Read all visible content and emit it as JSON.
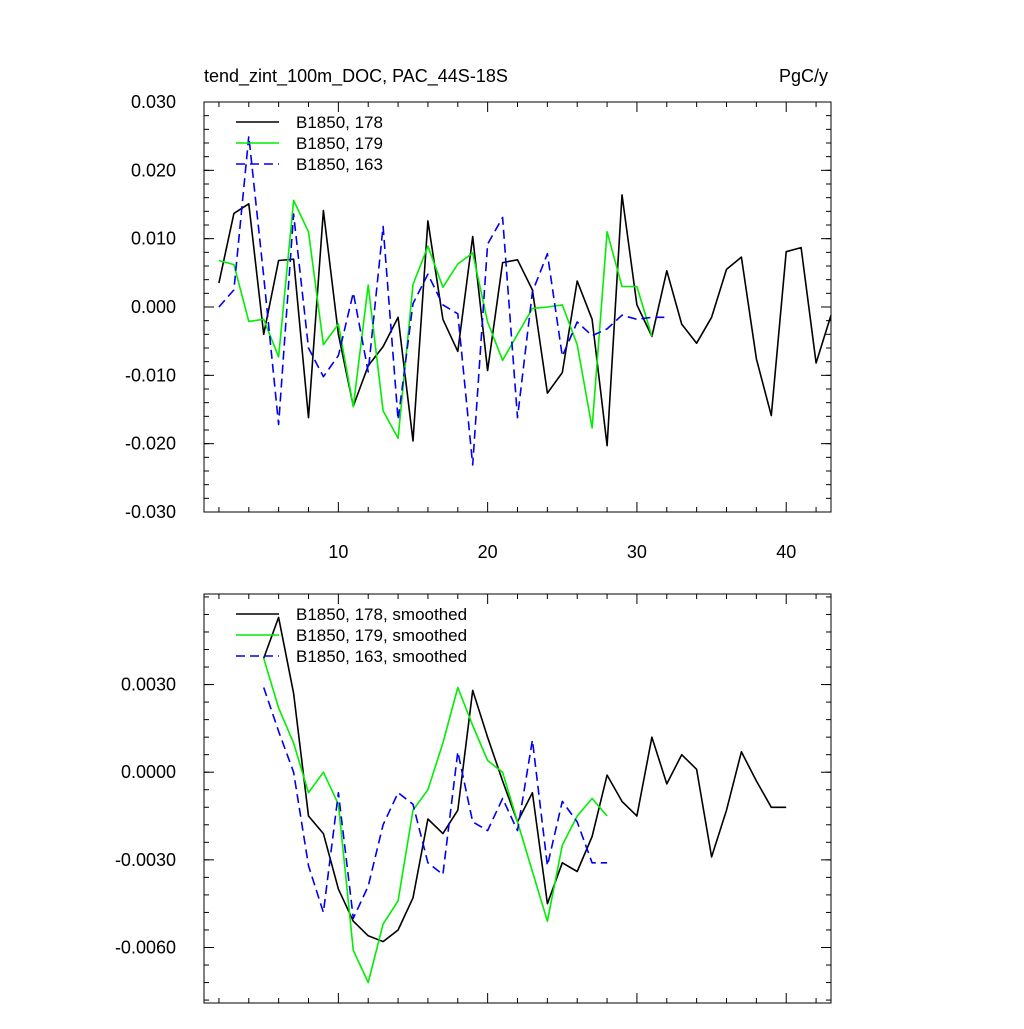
{
  "chart_data": [
    {
      "type": "line",
      "title": "tend_zint_100m_DOC, PAC_44S-18S",
      "units": "PgC/y",
      "xlim": [
        1,
        43
      ],
      "ylim": [
        -0.03,
        0.03
      ],
      "x_ticks": [
        10,
        20,
        30,
        40
      ],
      "y_ticks": [
        -0.03,
        -0.02,
        -0.01,
        0.0,
        0.01,
        0.02,
        0.03
      ],
      "y_tick_labels": [
        "-0.030",
        "-0.020",
        "-0.010",
        "0.000",
        "0.010",
        "0.020",
        "0.030"
      ],
      "legend_position": "top-left",
      "series": [
        {
          "name": "B1850, 178",
          "color": "#000000",
          "dash": "solid",
          "x": [
            2,
            3,
            4,
            5,
            6,
            7,
            8,
            9,
            10,
            11,
            12,
            13,
            14,
            15,
            16,
            17,
            18,
            19,
            20,
            21,
            22,
            23,
            24,
            25,
            26,
            27,
            28,
            29,
            30,
            31,
            32,
            33,
            34,
            35,
            36,
            37,
            38,
            39,
            40,
            41,
            42,
            43
          ],
          "values": [
            0.0035,
            0.0137,
            0.0151,
            -0.004,
            0.0068,
            0.007,
            -0.0162,
            0.0141,
            -0.004,
            -0.0145,
            -0.0086,
            -0.0058,
            -0.0015,
            -0.0196,
            0.0126,
            -0.0018,
            -0.0065,
            0.0103,
            -0.0093,
            0.0065,
            0.0069,
            0.0025,
            -0.0126,
            -0.0096,
            0.0038,
            -0.0018,
            -0.0203,
            0.0164,
            0.0003,
            -0.0043,
            0.0053,
            -0.0025,
            -0.0053,
            -0.0015,
            0.0055,
            0.0073,
            -0.0076,
            -0.0159,
            0.0081,
            0.0087,
            -0.0082,
            -0.0012
          ]
        },
        {
          "name": "B1850, 179",
          "color": "#00ee00",
          "dash": "solid",
          "x": [
            2,
            3,
            4,
            5,
            6,
            7,
            8,
            9,
            10,
            11,
            12,
            13,
            14,
            15,
            16,
            17,
            18,
            19,
            20,
            21,
            22,
            23,
            24,
            25,
            26,
            27,
            28,
            29,
            30,
            31
          ],
          "values": [
            0.0068,
            0.0062,
            -0.0021,
            -0.0018,
            -0.0073,
            0.0156,
            0.011,
            -0.0055,
            -0.0025,
            -0.0146,
            0.0032,
            -0.0152,
            -0.0192,
            0.0033,
            0.0089,
            0.0029,
            0.0063,
            0.0079,
            -0.0022,
            -0.0078,
            -0.004,
            -0.0002,
            0.0,
            0.0003,
            -0.0055,
            -0.0177,
            0.011,
            0.003,
            0.003,
            -0.0043
          ]
        },
        {
          "name": "B1850, 163",
          "color": "#0000ee",
          "dash": "dashed",
          "x": [
            2,
            3,
            4,
            5,
            6,
            7,
            8,
            9,
            10,
            11,
            12,
            13,
            14,
            15,
            16,
            17,
            18,
            19,
            20,
            21,
            22,
            23,
            24,
            25,
            26,
            27,
            28,
            29,
            30,
            31,
            32
          ],
          "values": [
            0.0,
            0.0025,
            0.025,
            0.0045,
            -0.0172,
            0.0136,
            -0.006,
            -0.0102,
            -0.0071,
            0.0021,
            -0.0095,
            0.0118,
            -0.0165,
            0.0005,
            0.0048,
            0.0003,
            -0.001,
            -0.0231,
            0.0092,
            0.0131,
            -0.0162,
            0.0022,
            0.0078,
            -0.0072,
            -0.0022,
            -0.0042,
            -0.0032,
            -0.0012,
            -0.0018,
            -0.0015,
            -0.0015
          ]
        }
      ]
    },
    {
      "type": "line",
      "xlim": [
        1,
        43
      ],
      "ylim": [
        -0.0079,
        0.0061
      ],
      "x_ticks": [
        10,
        20,
        30,
        40
      ],
      "y_ticks": [
        -0.006,
        -0.003,
        0.0,
        0.003
      ],
      "y_tick_labels": [
        "-0.0060",
        "-0.0030",
        "0.0000",
        "0.0030"
      ],
      "legend_position": "top-left",
      "series": [
        {
          "name": "B1850, 178, smoothed",
          "color": "#000000",
          "dash": "solid",
          "x": [
            5,
            6,
            7,
            8,
            9,
            10,
            11,
            12,
            13,
            14,
            15,
            16,
            17,
            18,
            19,
            20,
            21,
            22,
            23,
            24,
            25,
            26,
            27,
            28,
            29,
            30,
            31,
            32,
            33,
            34,
            35,
            36,
            37,
            38,
            39,
            40
          ],
          "values": [
            0.0039,
            0.0053,
            0.0027,
            -0.0015,
            -0.0021,
            -0.004,
            -0.0051,
            -0.0056,
            -0.0058,
            -0.0054,
            -0.0043,
            -0.0016,
            -0.0021,
            -0.0013,
            0.0028,
            0.0012,
            -0.0003,
            -0.0017,
            -0.0007,
            -0.0045,
            -0.0031,
            -0.0034,
            -0.0022,
            -0.0001,
            -0.001,
            -0.0015,
            0.0012,
            -0.0004,
            0.0006,
            0.0001,
            -0.0029,
            -0.0013,
            0.0007,
            -0.0003,
            -0.0012,
            -0.0012
          ]
        },
        {
          "name": "B1850, 179, smoothed",
          "color": "#00ee00",
          "dash": "solid",
          "x": [
            5,
            6,
            7,
            8,
            9,
            10,
            11,
            12,
            13,
            14,
            15,
            16,
            17,
            18,
            19,
            20,
            21,
            22,
            23,
            24,
            25,
            26,
            27,
            28
          ],
          "values": [
            0.0039,
            0.0022,
            0.001,
            -0.0007,
            0.0,
            -0.0011,
            -0.0061,
            -0.0072,
            -0.0052,
            -0.0044,
            -0.0013,
            -0.0006,
            0.001,
            0.0029,
            0.0016,
            0.0004,
            0.0,
            -0.0017,
            -0.0034,
            -0.0051,
            -0.0025,
            -0.0015,
            -0.0009,
            -0.0015
          ]
        },
        {
          "name": "B1850, 163, smoothed",
          "color": "#0000ee",
          "dash": "dashed",
          "x": [
            5,
            6,
            7,
            8,
            9,
            10,
            11,
            12,
            13,
            14,
            15,
            16,
            17,
            18,
            19,
            20,
            21,
            22,
            23,
            24,
            25,
            26,
            27,
            28
          ],
          "values": [
            0.0029,
            0.0014,
            0.0,
            -0.0032,
            -0.0048,
            -0.0007,
            -0.005,
            -0.0039,
            -0.0018,
            -0.0007,
            -0.0011,
            -0.0031,
            -0.0035,
            0.0007,
            -0.0017,
            -0.002,
            -0.0009,
            -0.002,
            0.0011,
            -0.0032,
            -0.001,
            -0.0017,
            -0.0031,
            -0.0031
          ]
        }
      ]
    }
  ]
}
